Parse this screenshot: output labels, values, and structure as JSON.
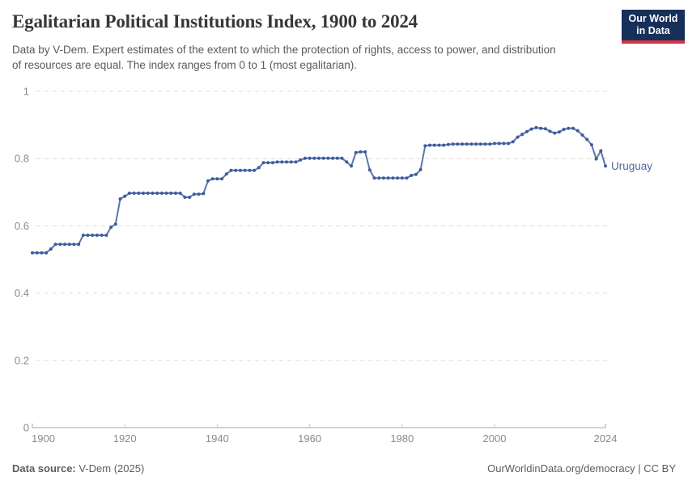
{
  "logo": {
    "line1": "Our World",
    "line2": "in Data",
    "bg_color": "#16305a",
    "accent_color": "#d5353f"
  },
  "chart_data": {
    "type": "line",
    "title": "Egalitarian Political Institutions Index, 1900 to 2024",
    "subtitle": "Data by V-Dem. Expert estimates of the extent to which the protection of rights, access to power, and distribution of resources are equal. The index ranges from 0 to 1 (most egalitarian).",
    "xlabel": "",
    "ylabel": "",
    "xlim": [
      1900,
      2024
    ],
    "ylim": [
      0,
      1
    ],
    "xticks": [
      1900,
      1920,
      1940,
      1960,
      1980,
      2000,
      2024
    ],
    "yticks": [
      0,
      0.2,
      0.4,
      0.6,
      0.8,
      1
    ],
    "grid": "horizontal dashed gridlines, light gray",
    "legend": "series label at end of line",
    "axis_color": "#a6a6a6",
    "grid_color": "#dcdcdc",
    "tick_label_color": "#8a8a8a",
    "series": [
      {
        "name": "Uruguay",
        "color": "#5c76ad",
        "dot_color": "#3d5c9e",
        "label_color": "#4d6aa5",
        "years": [
          1900,
          1901,
          1902,
          1903,
          1904,
          1905,
          1906,
          1907,
          1908,
          1909,
          1910,
          1911,
          1912,
          1913,
          1914,
          1915,
          1916,
          1917,
          1918,
          1919,
          1920,
          1921,
          1922,
          1923,
          1924,
          1925,
          1926,
          1927,
          1928,
          1929,
          1930,
          1931,
          1932,
          1933,
          1934,
          1935,
          1936,
          1937,
          1938,
          1939,
          1940,
          1941,
          1942,
          1943,
          1944,
          1945,
          1946,
          1947,
          1948,
          1949,
          1950,
          1951,
          1952,
          1953,
          1954,
          1955,
          1956,
          1957,
          1958,
          1959,
          1960,
          1961,
          1962,
          1963,
          1964,
          1965,
          1966,
          1967,
          1968,
          1969,
          1970,
          1971,
          1972,
          1973,
          1974,
          1975,
          1976,
          1977,
          1978,
          1979,
          1980,
          1981,
          1982,
          1983,
          1984,
          1985,
          1986,
          1987,
          1988,
          1989,
          1990,
          1991,
          1992,
          1993,
          1994,
          1995,
          1996,
          1997,
          1998,
          1999,
          2000,
          2001,
          2002,
          2003,
          2004,
          2005,
          2006,
          2007,
          2008,
          2009,
          2010,
          2011,
          2012,
          2013,
          2014,
          2015,
          2016,
          2017,
          2018,
          2019,
          2020,
          2021,
          2022,
          2023,
          2024
        ],
        "values": [
          0.52,
          0.52,
          0.52,
          0.52,
          0.531,
          0.545,
          0.545,
          0.545,
          0.545,
          0.545,
          0.545,
          0.572,
          0.572,
          0.572,
          0.572,
          0.572,
          0.572,
          0.596,
          0.605,
          0.68,
          0.688,
          0.697,
          0.697,
          0.697,
          0.697,
          0.697,
          0.697,
          0.697,
          0.697,
          0.697,
          0.697,
          0.697,
          0.697,
          0.685,
          0.685,
          0.694,
          0.694,
          0.696,
          0.734,
          0.74,
          0.74,
          0.74,
          0.754,
          0.765,
          0.765,
          0.765,
          0.765,
          0.765,
          0.765,
          0.773,
          0.788,
          0.788,
          0.788,
          0.79,
          0.79,
          0.79,
          0.79,
          0.79,
          0.796,
          0.801,
          0.801,
          0.801,
          0.801,
          0.801,
          0.801,
          0.801,
          0.801,
          0.801,
          0.79,
          0.778,
          0.818,
          0.82,
          0.82,
          0.766,
          0.742,
          0.742,
          0.742,
          0.742,
          0.742,
          0.742,
          0.742,
          0.742,
          0.75,
          0.753,
          0.767,
          0.838,
          0.84,
          0.84,
          0.84,
          0.84,
          0.842,
          0.843,
          0.843,
          0.843,
          0.843,
          0.843,
          0.843,
          0.843,
          0.843,
          0.843,
          0.845,
          0.845,
          0.845,
          0.845,
          0.85,
          0.864,
          0.872,
          0.88,
          0.888,
          0.892,
          0.89,
          0.889,
          0.881,
          0.876,
          0.879,
          0.887,
          0.89,
          0.89,
          0.883,
          0.87,
          0.857,
          0.841,
          0.799,
          0.823,
          0.778
        ]
      }
    ]
  },
  "footer": {
    "source_label": "Data source:",
    "source_value": " V-Dem (2025)",
    "right_text": "OurWorldinData.org/democracy | CC BY"
  }
}
